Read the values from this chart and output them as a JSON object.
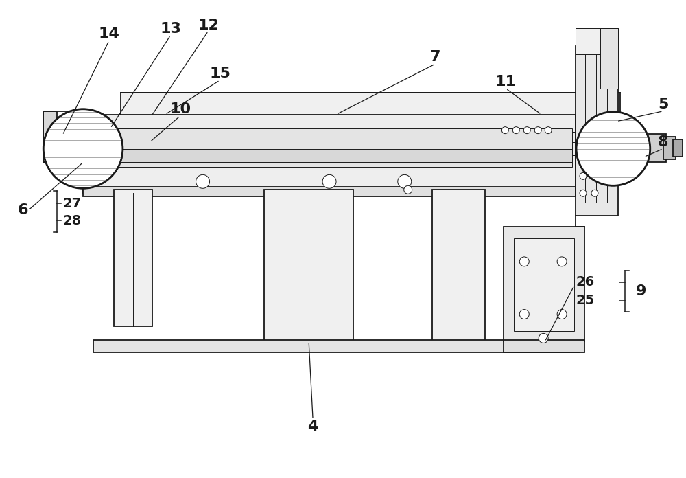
{
  "background_color": "#ffffff",
  "line_color": "#1a1a1a",
  "fig_width": 10.0,
  "fig_height": 6.96,
  "dpi": 100
}
